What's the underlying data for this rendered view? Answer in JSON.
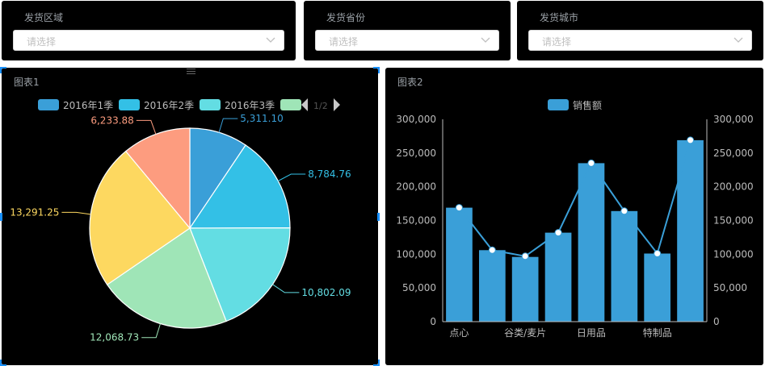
{
  "filters": [
    {
      "title": "发货区域",
      "placeholder": "请选择"
    },
    {
      "title": "发货省份",
      "placeholder": "请选择"
    },
    {
      "title": "发货城市",
      "placeholder": "请选择"
    }
  ],
  "chart1": {
    "title": "图表1",
    "pager": "1/2"
  },
  "chart2": {
    "title": "图表2"
  },
  "chart_data": [
    {
      "type": "pie",
      "title": "图表1",
      "legend": [
        "2016年1季",
        "2016年2季",
        "2016年3季",
        ""
      ],
      "legend_page": "1/2",
      "slices": [
        {
          "value": 5311.1,
          "label": "5,311.10",
          "color": "#3a9fd8"
        },
        {
          "value": 8784.76,
          "label": "8,784.76",
          "color": "#33c0e6"
        },
        {
          "value": 10802.09,
          "label": "10,802.09",
          "color": "#63dde3"
        },
        {
          "value": 12068.73,
          "label": "12,068.73",
          "color": "#9fe5b7"
        },
        {
          "value": 13291.25,
          "label": "13,291.25",
          "color": "#fdd860"
        },
        {
          "value": 6233.88,
          "label": "6,233.88",
          "color": "#fd9c7f"
        }
      ]
    },
    {
      "type": "bar",
      "title": "图表2",
      "legend": [
        "销售额"
      ],
      "x_tick_labels": [
        "点心",
        "谷类/麦片",
        "日用品",
        "特制品"
      ],
      "series": [
        {
          "name": "销售额",
          "type": "bar",
          "color": "#3a9fd8",
          "values": [
            169000,
            106000,
            96000,
            132000,
            235000,
            164000,
            101000,
            269000
          ]
        },
        {
          "name": "",
          "type": "line",
          "color": "#3a9fd8",
          "values": [
            169000,
            106000,
            97000,
            132000,
            235000,
            164000,
            101000,
            269000
          ]
        }
      ],
      "ylim": [
        0,
        300000
      ],
      "y_ticks": [
        "0",
        "50,000",
        "100,000",
        "150,000",
        "200,000",
        "250,000",
        "300,000"
      ],
      "y2_ticks": [
        "0",
        "50,000",
        "100,000",
        "150,000",
        "200,000",
        "250,000",
        "300,000"
      ]
    }
  ]
}
